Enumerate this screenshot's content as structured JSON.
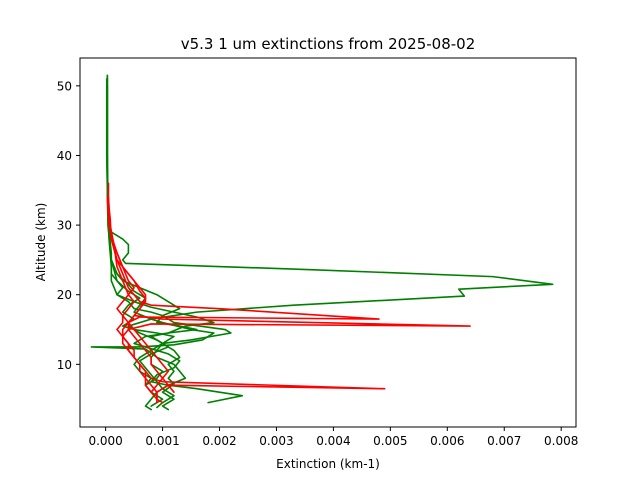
{
  "chart_data": {
    "type": "line",
    "title": "v5.3 1 um extinctions from 2025-08-02",
    "xlabel": "Extinction (km-1)",
    "ylabel": "Altitude (km)",
    "xlim": [
      -0.00045,
      0.00826
    ],
    "ylim": [
      1,
      54
    ],
    "xticks": [
      0.0,
      0.001,
      0.002,
      0.003,
      0.004,
      0.005,
      0.006,
      0.007,
      0.008
    ],
    "xtick_labels": [
      "0.000",
      "0.001",
      "0.002",
      "0.003",
      "0.004",
      "0.005",
      "0.006",
      "0.007",
      "0.008"
    ],
    "yticks": [
      10,
      20,
      30,
      40,
      50
    ],
    "ytick_labels": [
      "10",
      "20",
      "30",
      "40",
      "50"
    ],
    "grid": false,
    "colors": {
      "green": "#008000",
      "red": "#ff0000"
    },
    "series": [
      {
        "color": "green",
        "points": [
          [
            3e-05,
            51.5
          ],
          [
            3e-05,
            45
          ],
          [
            3e-05,
            40
          ],
          [
            3e-05,
            35
          ],
          [
            5e-05,
            30
          ],
          [
            0.0001,
            29
          ],
          [
            0.0003,
            28
          ],
          [
            0.0004,
            27.2
          ],
          [
            0.0004,
            26
          ],
          [
            0.0003,
            25
          ],
          [
            0.00035,
            24.5
          ],
          [
            0.0036,
            23.6
          ],
          [
            0.0068,
            22.6
          ],
          [
            0.00785,
            21.5
          ],
          [
            0.0062,
            20.8
          ],
          [
            0.0063,
            19.8
          ],
          [
            0.0033,
            18.5
          ],
          [
            0.0016,
            17.5
          ],
          [
            0.0008,
            16.5
          ],
          [
            0.0004,
            15.5
          ],
          [
            0.0006,
            14.5
          ],
          [
            0.0009,
            13.5
          ],
          [
            0.0011,
            12.5
          ],
          [
            0.0008,
            11.5
          ],
          [
            0.0006,
            10.5
          ],
          [
            0.0007,
            9.5
          ],
          [
            0.0008,
            8.5
          ],
          [
            0.0009,
            7.5
          ],
          [
            0.001,
            6.5
          ],
          [
            0.0012,
            5.5
          ],
          [
            0.001,
            4.5
          ],
          [
            0.0009,
            3.8
          ]
        ]
      },
      {
        "color": "green",
        "points": [
          [
            3e-05,
            51.5
          ],
          [
            3e-05,
            40
          ],
          [
            5e-05,
            30
          ],
          [
            0.0001,
            25
          ],
          [
            0.0002,
            23
          ],
          [
            0.0003,
            22
          ],
          [
            0.0006,
            21
          ],
          [
            0.0009,
            20
          ],
          [
            0.0011,
            19
          ],
          [
            0.0013,
            18
          ],
          [
            0.001,
            17
          ],
          [
            0.0012,
            16
          ],
          [
            0.0021,
            15
          ],
          [
            0.0022,
            14.5
          ],
          [
            0.0015,
            13.5
          ],
          [
            0.001,
            13
          ],
          [
            0.0012,
            12
          ],
          [
            0.0013,
            11
          ],
          [
            0.0011,
            10
          ],
          [
            0.0012,
            9
          ],
          [
            0.0011,
            8
          ],
          [
            0.0012,
            7.2
          ],
          [
            0.001,
            6
          ],
          [
            0.0012,
            5
          ],
          [
            0.001,
            4
          ],
          [
            0.0011,
            3.5
          ]
        ]
      },
      {
        "color": "green",
        "points": [
          [
            2e-05,
            50
          ],
          [
            2e-05,
            40
          ],
          [
            4e-05,
            30
          ],
          [
            0.0001,
            25
          ],
          [
            0.0002,
            23
          ],
          [
            0.0004,
            21.5
          ],
          [
            0.0005,
            20.5
          ],
          [
            0.0007,
            19.5
          ],
          [
            0.0006,
            18.5
          ],
          [
            0.0005,
            17.5
          ],
          [
            0.0008,
            16.5
          ],
          [
            0.001,
            16
          ],
          [
            0.0015,
            15
          ],
          [
            0.0019,
            14.5
          ],
          [
            0.0017,
            13.5
          ],
          [
            0.0012,
            12.8
          ],
          [
            0.0006,
            12.5
          ],
          [
            -0.00025,
            12.5
          ],
          [
            0.0007,
            12.2
          ],
          [
            0.0009,
            11
          ],
          [
            0.0012,
            10
          ],
          [
            0.0013,
            9
          ],
          [
            0.0014,
            8
          ],
          [
            0.0011,
            7
          ],
          [
            0.0009,
            6
          ],
          [
            0.0008,
            5
          ],
          [
            0.0007,
            4
          ],
          [
            0.0008,
            3.5
          ]
        ]
      },
      {
        "color": "green",
        "points": [
          [
            3e-05,
            50
          ],
          [
            3e-05,
            35
          ],
          [
            6e-05,
            28
          ],
          [
            0.0001,
            24
          ],
          [
            0.0001,
            22
          ],
          [
            0.0002,
            20
          ],
          [
            0.0005,
            19
          ],
          [
            0.0008,
            18.2
          ],
          [
            0.0012,
            17.5
          ],
          [
            0.0016,
            16.8
          ],
          [
            0.0019,
            16
          ],
          [
            0.0014,
            15.5
          ],
          [
            0.0011,
            14.5
          ],
          [
            0.0007,
            14
          ],
          [
            0.0005,
            13
          ],
          [
            0.0007,
            12.5
          ],
          [
            0.0011,
            11.5
          ],
          [
            0.0013,
            10.5
          ],
          [
            0.0012,
            9.5
          ],
          [
            0.0009,
            8.5
          ],
          [
            0.0008,
            7.5
          ],
          [
            0.0011,
            7
          ],
          [
            0.0016,
            6.5
          ],
          [
            0.0024,
            5.5
          ],
          [
            0.0018,
            4.5
          ]
        ]
      },
      {
        "color": "green",
        "points": [
          [
            3e-05,
            51
          ],
          [
            3e-05,
            38
          ],
          [
            5e-05,
            30
          ],
          [
            0.0001,
            25
          ],
          [
            0.0002,
            22
          ],
          [
            0.0003,
            21
          ],
          [
            0.0002,
            20
          ],
          [
            0.0004,
            19
          ],
          [
            0.0005,
            18
          ],
          [
            0.0008,
            17.5
          ],
          [
            0.001,
            17
          ],
          [
            0.0009,
            16
          ],
          [
            0.0013,
            15.5
          ],
          [
            0.0016,
            15
          ],
          [
            0.0011,
            14.5
          ],
          [
            0.0008,
            14
          ],
          [
            0.001,
            13
          ],
          [
            0.0009,
            12
          ],
          [
            0.0008,
            11
          ],
          [
            0.0008,
            10
          ],
          [
            0.001,
            9
          ],
          [
            0.0009,
            8
          ],
          [
            0.0007,
            7
          ],
          [
            0.0008,
            6
          ],
          [
            0.001,
            5
          ],
          [
            0.0008,
            4
          ]
        ]
      },
      {
        "color": "green",
        "points": [
          [
            2e-05,
            51
          ],
          [
            2e-05,
            40
          ],
          [
            5e-05,
            30
          ],
          [
            0.0001,
            26
          ],
          [
            0.0001,
            23
          ],
          [
            0.0002,
            22
          ],
          [
            0.0004,
            20.5
          ],
          [
            0.0006,
            19.5
          ],
          [
            0.0004,
            18.5
          ],
          [
            0.0003,
            17.5
          ],
          [
            0.0005,
            16.5
          ],
          [
            0.0003,
            15.5
          ],
          [
            0.0005,
            15
          ],
          [
            0.0009,
            14.5
          ],
          [
            0.0012,
            14
          ],
          [
            0.001,
            13
          ],
          [
            0.0008,
            12
          ],
          [
            0.0006,
            11
          ],
          [
            0.0005,
            10
          ],
          [
            0.0006,
            9
          ],
          [
            0.0008,
            8
          ],
          [
            0.0007,
            7
          ]
        ]
      },
      {
        "color": "red",
        "points": [
          [
            5e-05,
            36
          ],
          [
            5e-05,
            33
          ],
          [
            8e-05,
            31
          ],
          [
            0.0001,
            28
          ],
          [
            0.0002,
            25
          ],
          [
            0.0003,
            23
          ],
          [
            0.0004,
            21
          ],
          [
            0.0005,
            20
          ],
          [
            0.0006,
            19
          ],
          [
            0.0008,
            18.5
          ],
          [
            0.002,
            18
          ],
          [
            0.0048,
            16.5
          ],
          [
            0.0006,
            16.8
          ],
          [
            0.0004,
            16
          ],
          [
            0.0003,
            15
          ],
          [
            0.0003,
            14
          ],
          [
            0.0004,
            13
          ],
          [
            0.0004,
            12
          ],
          [
            0.0005,
            11
          ],
          [
            0.0006,
            10
          ],
          [
            0.0007,
            9
          ],
          [
            0.0008,
            8
          ],
          [
            0.001,
            7.5
          ],
          [
            0.0049,
            6.5
          ],
          [
            0.0011,
            7
          ],
          [
            0.0009,
            6
          ],
          [
            0.0009,
            5
          ],
          [
            0.0009,
            4.5
          ]
        ]
      },
      {
        "color": "red",
        "points": [
          [
            5e-05,
            34
          ],
          [
            8e-05,
            30
          ],
          [
            0.00015,
            27
          ],
          [
            0.0003,
            24
          ],
          [
            0.0005,
            22
          ],
          [
            0.0006,
            20.5
          ],
          [
            0.0007,
            19.5
          ],
          [
            0.0006,
            18
          ],
          [
            0.0005,
            17
          ],
          [
            0.001,
            16.5
          ],
          [
            0.0064,
            15.5
          ],
          [
            0.0008,
            15.8
          ],
          [
            0.0004,
            15
          ],
          [
            0.0003,
            14
          ],
          [
            0.0003,
            13
          ],
          [
            0.0004,
            12
          ],
          [
            0.0005,
            11
          ],
          [
            0.0006,
            10
          ],
          [
            0.0006,
            9
          ],
          [
            0.0007,
            8
          ],
          [
            0.0007,
            7
          ],
          [
            0.0008,
            6
          ],
          [
            0.0009,
            5
          ],
          [
            0.001,
            4.5
          ]
        ]
      },
      {
        "color": "red",
        "points": [
          [
            4e-05,
            33
          ],
          [
            8e-05,
            29
          ],
          [
            0.0002,
            26
          ],
          [
            0.0003,
            24
          ],
          [
            0.0004,
            22
          ],
          [
            0.0005,
            21
          ],
          [
            0.0004,
            20
          ],
          [
            0.0003,
            19
          ],
          [
            0.0002,
            18
          ],
          [
            0.0003,
            17
          ],
          [
            0.0004,
            16
          ],
          [
            0.0005,
            15
          ],
          [
            0.0006,
            14
          ],
          [
            0.0007,
            13
          ],
          [
            0.0008,
            12
          ],
          [
            0.0009,
            11
          ],
          [
            0.001,
            10
          ],
          [
            0.0011,
            9
          ],
          [
            0.001,
            8
          ],
          [
            0.0009,
            7
          ],
          [
            0.0008,
            6
          ]
        ]
      },
      {
        "color": "red",
        "points": [
          [
            5e-05,
            32
          ],
          [
            0.0001,
            28
          ],
          [
            0.0002,
            25
          ],
          [
            0.0004,
            23
          ],
          [
            0.0006,
            21
          ],
          [
            0.0007,
            20
          ],
          [
            0.0007,
            19
          ],
          [
            0.0006,
            18
          ],
          [
            0.0005,
            17
          ],
          [
            0.0004,
            16
          ],
          [
            0.0004,
            15
          ],
          [
            0.0005,
            14
          ],
          [
            0.0006,
            13
          ],
          [
            0.0007,
            12
          ],
          [
            0.0008,
            11
          ],
          [
            0.0008,
            10
          ],
          [
            0.0009,
            9
          ],
          [
            0.001,
            8
          ],
          [
            0.0011,
            7
          ],
          [
            0.0012,
            6
          ]
        ]
      },
      {
        "color": "red",
        "points": [
          [
            3e-05,
            34
          ],
          [
            6e-05,
            30
          ],
          [
            0.00015,
            27
          ],
          [
            0.0002,
            24
          ],
          [
            0.0003,
            22
          ],
          [
            0.0004,
            20
          ],
          [
            0.0005,
            19
          ],
          [
            0.0004,
            18
          ],
          [
            0.0003,
            17
          ],
          [
            0.0003,
            16
          ],
          [
            0.0002,
            15
          ],
          [
            0.0003,
            14
          ],
          [
            0.0004,
            13
          ],
          [
            0.0005,
            12
          ],
          [
            0.0005,
            11
          ],
          [
            0.0006,
            10
          ],
          [
            0.0007,
            9
          ],
          [
            0.0007,
            8
          ],
          [
            0.0008,
            7
          ],
          [
            0.0009,
            6
          ],
          [
            0.0009,
            5
          ]
        ]
      }
    ]
  }
}
